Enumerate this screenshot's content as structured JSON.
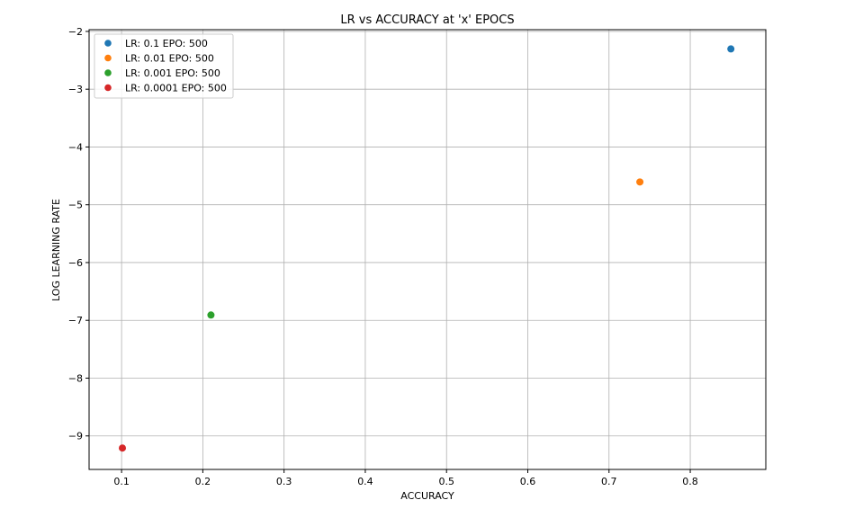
{
  "chart_data": {
    "type": "scatter",
    "title": "LR vs ACCURACY at 'x' EPOCS",
    "xlabel": "ACCURACY",
    "ylabel": "LOG LEARNING RATE",
    "xlim": [
      0.06,
      0.893
    ],
    "ylim": [
      -9.58,
      -1.97
    ],
    "xticks": [
      0.1,
      0.2,
      0.3,
      0.4,
      0.5,
      0.6,
      0.7,
      0.8
    ],
    "xtick_labels": [
      "0.1",
      "0.2",
      "0.3",
      "0.4",
      "0.5",
      "0.6",
      "0.7",
      "0.8"
    ],
    "yticks": [
      -2,
      -3,
      -4,
      -5,
      -6,
      -7,
      -8,
      -9
    ],
    "ytick_labels": [
      "−2",
      "−3",
      "−4",
      "−5",
      "−6",
      "−7",
      "−8",
      "−9"
    ],
    "grid": true,
    "legend_position": "top-left",
    "series": [
      {
        "name": "LR: 0.1 EPO: 500",
        "color": "#1f77b4",
        "points": [
          {
            "x": 0.85,
            "y": -2.303
          }
        ]
      },
      {
        "name": "LR: 0.01 EPO: 500",
        "color": "#ff7f0e",
        "points": [
          {
            "x": 0.738,
            "y": -4.605
          }
        ]
      },
      {
        "name": "LR: 0.001 EPO: 500",
        "color": "#2ca02c",
        "points": [
          {
            "x": 0.21,
            "y": -6.908
          }
        ]
      },
      {
        "name": "LR: 0.0001 EPO: 500",
        "color": "#d62728",
        "points": [
          {
            "x": 0.101,
            "y": -9.21
          }
        ]
      }
    ]
  }
}
